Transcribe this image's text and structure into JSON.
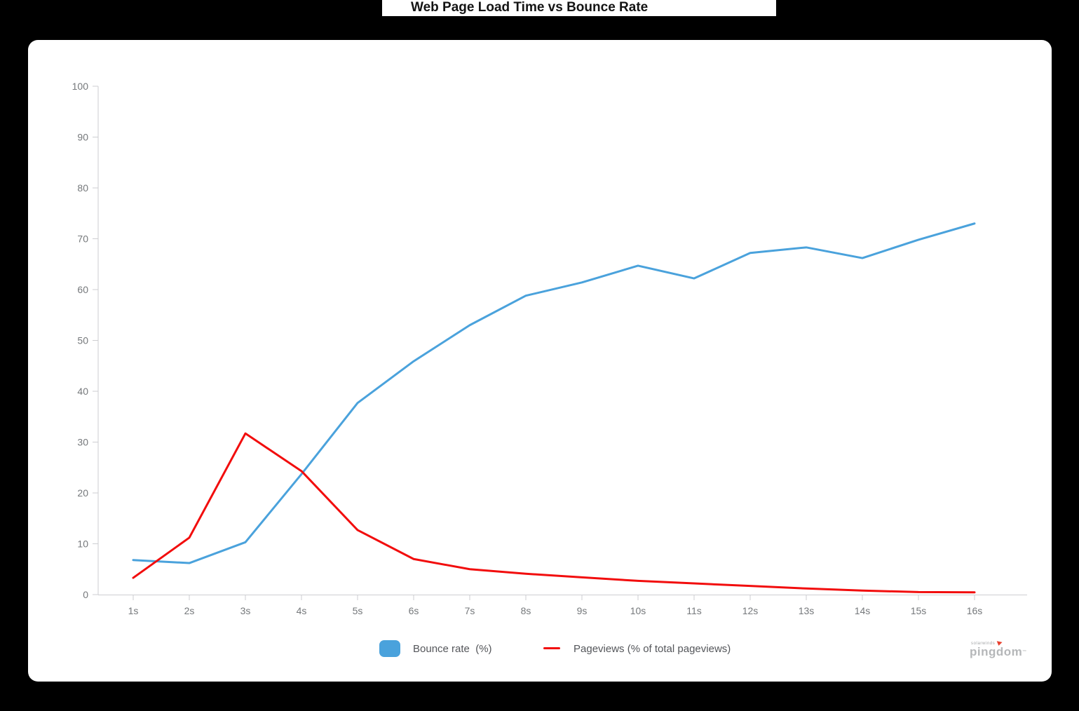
{
  "title": "Web Page Load Time vs Bounce Rate",
  "chart_data": {
    "type": "line",
    "title": "Web Page Load Time vs Bounce Rate",
    "xlabel": "",
    "ylabel": "",
    "ylim": [
      0,
      100
    ],
    "y_tick_labels": [
      "0",
      "10",
      "20",
      "30",
      "40",
      "50",
      "60",
      "70",
      "80",
      "90",
      "100"
    ],
    "grid": false,
    "legend_position": "bottom",
    "categories": [
      "1s",
      "2s",
      "3s",
      "4s",
      "5s",
      "6s",
      "7s",
      "8s",
      "9s",
      "10s",
      "11s",
      "12s",
      "13s",
      "14s",
      "15s",
      "16s"
    ],
    "series": [
      {
        "name": "Bounce rate  (%)",
        "color": "#4AA2DC",
        "values": [
          6.8,
          6.2,
          10.3,
          23.7,
          37.7,
          45.9,
          53.0,
          58.8,
          61.4,
          64.7,
          62.2,
          67.2,
          68.3,
          66.2,
          69.8,
          73.0
        ]
      },
      {
        "name": "Pageviews (% of total pageviews)",
        "color": "#F20D0D",
        "values": [
          3.3,
          11.2,
          31.7,
          24.3,
          12.7,
          7.0,
          5.0,
          4.1,
          3.4,
          2.7,
          2.2,
          1.7,
          1.2,
          0.8,
          0.5,
          0.45
        ]
      }
    ]
  },
  "legend": {
    "bounce_rate_label": "Bounce rate  (%)",
    "pageviews_label": "Pageviews (% of total pageviews)"
  },
  "logo": {
    "brand_small": "solarwinds",
    "brand": "pingdom",
    "trademark": "™"
  },
  "colors": {
    "background": "#000000",
    "card": "#FFFFFF",
    "bounce_rate_line": "#4AA2DC",
    "pageviews_line": "#F20D0D",
    "axis": "#CDCED1",
    "tick_text": "#75787B"
  }
}
